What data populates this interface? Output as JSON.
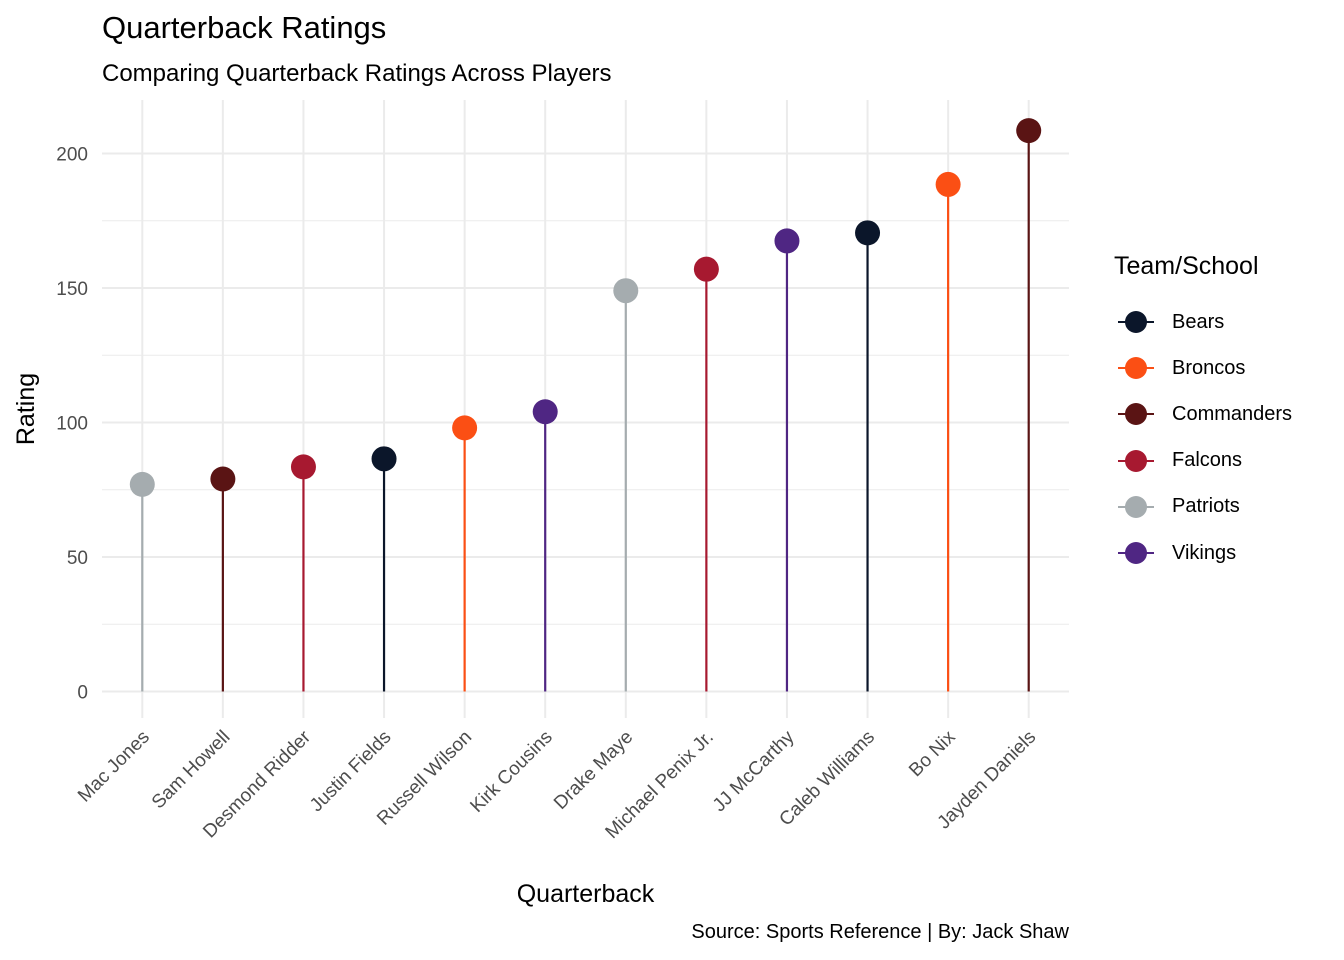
{
  "title": "Quarterback Ratings",
  "subtitle": "Comparing Quarterback Ratings Across Players",
  "caption": "Source: Sports Reference | By: Jack Shaw",
  "legend": {
    "title": "Team/School",
    "items": [
      {
        "label": "Bears",
        "color": "#0B162A"
      },
      {
        "label": "Broncos",
        "color": "#FB4F14"
      },
      {
        "label": "Commanders",
        "color": "#5A1414"
      },
      {
        "label": "Falcons",
        "color": "#A71930"
      },
      {
        "label": "Patriots",
        "color": "#A5ACAF"
      },
      {
        "label": "Vikings",
        "color": "#4F2683"
      }
    ]
  },
  "chart_data": {
    "type": "lollipop",
    "xlabel": "Quarterback",
    "ylabel": "Rating",
    "ylim": [
      0,
      215
    ],
    "yticks": [
      0,
      50,
      100,
      150,
      200
    ],
    "grid": true,
    "legend_position": "right",
    "categories": [
      "Mac Jones",
      "Sam Howell",
      "Desmond Ridder",
      "Justin Fields",
      "Russell Wilson",
      "Kirk Cousins",
      "Drake Maye",
      "Michael Penix Jr.",
      "JJ McCarthy",
      "Caleb Williams",
      "Bo Nix",
      "Jayden Daniels"
    ],
    "values": [
      77,
      79,
      83.5,
      86.5,
      98,
      104,
      149,
      157,
      167.5,
      170.5,
      188.5,
      208.5
    ],
    "teams": [
      "Patriots",
      "Commanders",
      "Falcons",
      "Bears",
      "Broncos",
      "Vikings",
      "Patriots",
      "Falcons",
      "Vikings",
      "Bears",
      "Broncos",
      "Commanders"
    ]
  }
}
